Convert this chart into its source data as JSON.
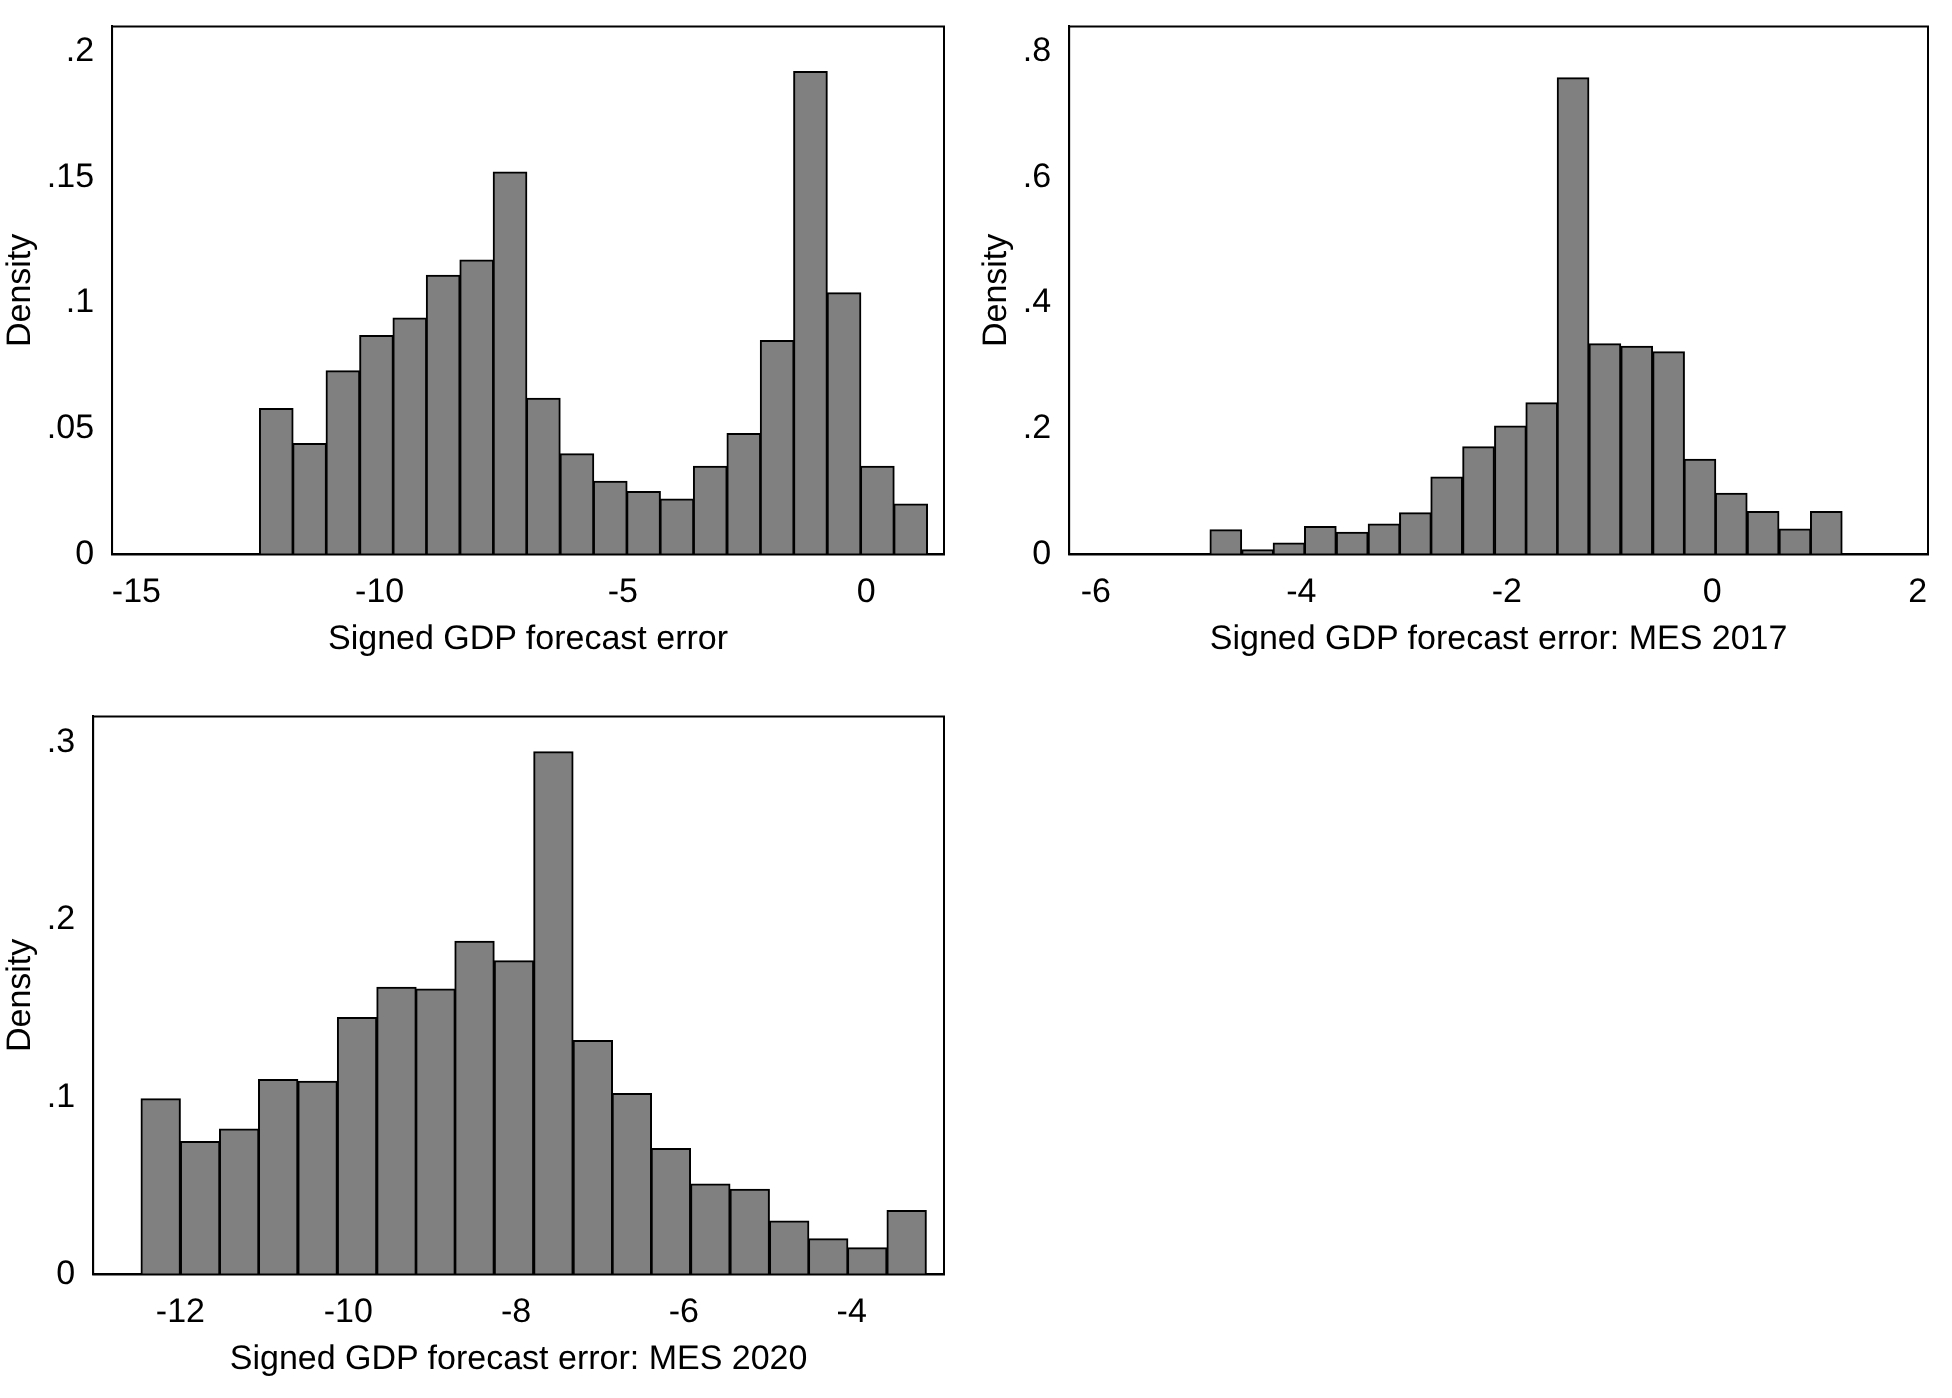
{
  "chart_data": [
    {
      "type": "histogram",
      "xlabel": "Signed GDP forecast error",
      "ylabel": "Density",
      "color": "#808080",
      "bins": [
        -12.47,
        -11.78,
        -11.1,
        -10.41,
        -9.72,
        -9.04,
        -8.35,
        -7.66,
        -6.98,
        -6.29,
        -5.6,
        -4.92,
        -4.23,
        -3.55,
        -2.86,
        -2.17,
        -1.49,
        -0.8,
        -0.11,
        0.57,
        1.26
      ],
      "values": [
        0.058,
        0.044,
        0.073,
        0.087,
        0.094,
        0.111,
        0.117,
        0.152,
        0.062,
        0.04,
        0.029,
        0.025,
        0.022,
        0.035,
        0.048,
        0.085,
        0.192,
        0.104,
        0.035,
        0.02
      ],
      "xlim": [
        -15.5,
        1.6
      ],
      "xticks": [
        -15,
        -10,
        -5,
        0
      ],
      "ylim": [
        0,
        0.21
      ],
      "yticks": [
        {
          "value": 0,
          "label": "0"
        },
        {
          "value": 0.05,
          "label": ".05"
        },
        {
          "value": 0.1,
          "label": ".1"
        },
        {
          "value": 0.15,
          "label": ".15"
        },
        {
          "value": 0.2,
          "label": ".2"
        }
      ]
    },
    {
      "type": "histogram",
      "xlabel": "Signed GDP forecast error: MES 2017",
      "ylabel": "Density",
      "color": "#808080",
      "bins": [
        -4.89,
        -4.58,
        -4.27,
        -3.97,
        -3.66,
        -3.35,
        -3.04,
        -2.74,
        -2.43,
        -2.12,
        -1.81,
        -1.51,
        -1.2,
        -0.89,
        -0.58,
        -0.27,
        0.03,
        0.34,
        0.65,
        0.96,
        1.26
      ],
      "values": [
        0.039,
        0.007,
        0.018,
        0.044,
        0.035,
        0.048,
        0.066,
        0.123,
        0.171,
        0.204,
        0.241,
        0.758,
        0.335,
        0.331,
        0.322,
        0.151,
        0.097,
        0.068,
        0.04,
        0.068
      ],
      "xlim": [
        -6.26,
        2.1
      ],
      "xticks": [
        -6,
        -4,
        -2,
        0,
        2
      ],
      "ylim": [
        0,
        0.84
      ],
      "yticks": [
        {
          "value": 0,
          "label": "0"
        },
        {
          "value": 0.2,
          "label": ".2"
        },
        {
          "value": 0.4,
          "label": ".4"
        },
        {
          "value": 0.6,
          "label": ".6"
        },
        {
          "value": 0.8,
          "label": ".8"
        }
      ]
    },
    {
      "type": "histogram",
      "xlabel": "Signed GDP forecast error: MES 2020",
      "ylabel": "Density",
      "color": "#808080",
      "bins": [
        -12.47,
        -12.0,
        -11.53,
        -11.07,
        -10.6,
        -10.13,
        -9.66,
        -9.19,
        -8.73,
        -8.26,
        -7.79,
        -7.32,
        -6.85,
        -6.39,
        -5.92,
        -5.45,
        -4.98,
        -4.51,
        -4.05,
        -3.58,
        -3.11
      ],
      "values": [
        0.099,
        0.075,
        0.082,
        0.11,
        0.109,
        0.145,
        0.162,
        0.161,
        0.188,
        0.177,
        0.295,
        0.132,
        0.102,
        0.071,
        0.051,
        0.048,
        0.03,
        0.02,
        0.015,
        0.036
      ],
      "xlim": [
        -13.04,
        -2.9
      ],
      "xticks": [
        -12,
        -10,
        -8,
        -6,
        -4
      ],
      "ylim": [
        0,
        0.315
      ],
      "yticks": [
        {
          "value": 0,
          "label": "0"
        },
        {
          "value": 0.1,
          "label": ".1"
        },
        {
          "value": 0.2,
          "label": ".2"
        },
        {
          "value": 0.3,
          "label": ".3"
        }
      ]
    }
  ]
}
